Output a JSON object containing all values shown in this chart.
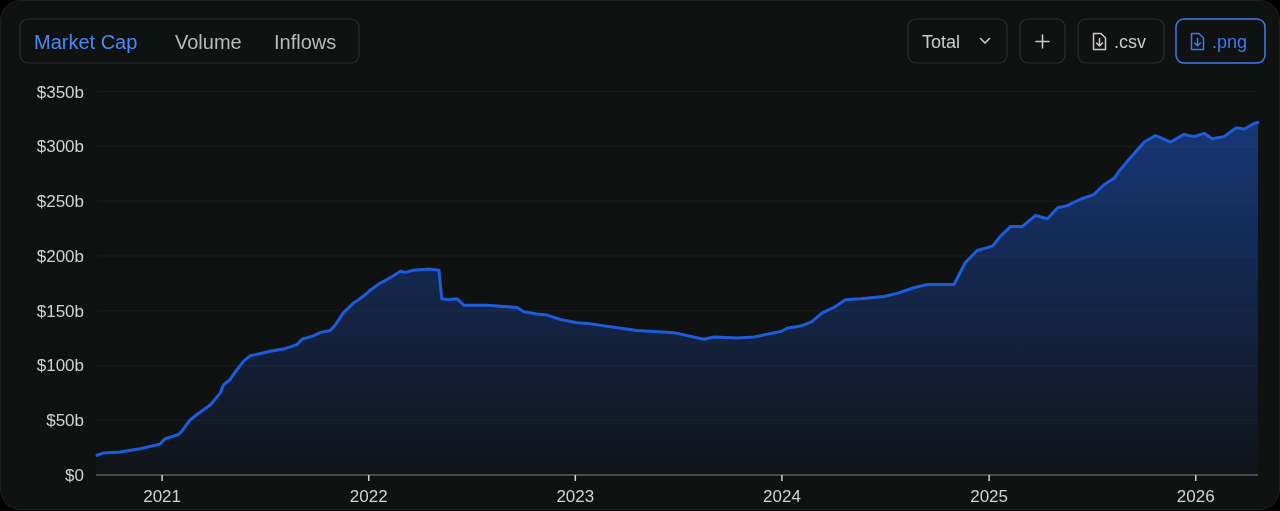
{
  "chart_data": {
    "type": "area",
    "title": "Market Cap",
    "annotations": [
      "Volume",
      "Inflows",
      "Total",
      ".csv",
      ".png"
    ],
    "x": [
      "2020-09-08",
      "2020-09-19",
      "2020-10-19",
      "2020-11-23",
      "2020-12-28",
      "2021-01-06",
      "2021-01-30",
      "2021-02-05",
      "2021-02-19",
      "2021-03-03",
      "2021-03-27",
      "2021-04-14",
      "2021-04-19",
      "2021-05-01",
      "2021-05-10",
      "2021-05-25",
      "2021-06-06",
      "2021-06-17",
      "2021-07-11",
      "2021-08-03",
      "2021-08-27",
      "2021-09-05",
      "2021-09-25",
      "2021-10-07",
      "2021-10-25",
      "2021-11-03",
      "2021-11-17",
      "2021-12-05",
      "2021-12-14",
      "2021-12-29",
      "2022-01-04",
      "2022-01-21",
      "2022-02-11",
      "2022-02-26",
      "2022-03-07",
      "2022-03-21",
      "2022-04-20",
      "2022-05-05",
      "2022-05-10",
      "2022-05-22",
      "2022-06-06",
      "2022-06-18",
      "2022-07-29",
      "2022-09-20",
      "2022-10-02",
      "2022-10-25",
      "2022-11-12",
      "2022-12-06",
      "2023-01-04",
      "2023-01-28",
      "2023-03-10",
      "2023-04-20",
      "2023-06-24",
      "2023-08-16",
      "2023-09-03",
      "2023-10-14",
      "2023-11-12",
      "2023-12-30",
      "2024-01-10",
      "2024-02-03",
      "2024-02-23",
      "2024-03-12",
      "2024-04-02",
      "2024-04-22",
      "2024-05-19",
      "2024-06-29",
      "2024-07-23",
      "2024-08-21",
      "2024-09-14",
      "2024-10-31",
      "2024-11-20",
      "2024-12-11",
      "2025-01-07",
      "2025-01-21",
      "2025-02-08",
      "2025-03-01",
      "2025-03-24",
      "2025-04-14",
      "2025-05-02",
      "2025-05-19",
      "2025-06-12",
      "2025-07-05",
      "2025-07-23",
      "2025-08-10",
      "2025-08-21",
      "2025-09-05",
      "2025-10-02",
      "2025-10-22",
      "2025-11-18",
      "2025-12-11",
      "2025-12-29",
      "2026-01-16",
      "2026-01-30",
      "2026-02-20",
      "2026-03-13",
      "2026-03-28",
      "2026-04-14",
      "2026-04-21"
    ],
    "values": [
      18,
      20,
      21,
      24,
      28,
      33,
      37,
      40,
      50,
      55,
      64,
      75,
      82,
      87,
      94,
      104,
      109,
      110,
      113,
      115,
      119,
      124,
      127,
      130,
      132,
      137,
      148,
      157,
      160,
      166,
      169,
      175,
      181,
      186,
      185,
      187,
      188,
      187,
      161,
      160,
      161,
      155,
      155,
      153,
      149,
      147,
      146,
      142,
      139,
      138,
      135,
      132,
      130,
      124,
      126,
      125,
      126,
      131,
      134,
      136,
      140,
      148,
      153,
      160,
      161,
      163,
      166,
      171,
      174,
      174,
      194,
      205,
      209,
      218,
      227,
      227,
      237,
      234,
      244,
      246,
      252,
      256,
      265,
      271,
      279,
      288,
      304,
      310,
      304,
      311,
      309,
      312,
      307,
      309,
      317,
      316,
      321,
      322
    ],
    "color": "#1d5ddc",
    "xlim": [
      "2020-09-08",
      "2026-04-21"
    ],
    "xticks": [
      {
        "value": "2021-01-01",
        "label": "2021"
      },
      {
        "value": "2022-01-01",
        "label": "2022"
      },
      {
        "value": "2023-01-01",
        "label": "2023"
      },
      {
        "value": "2024-01-01",
        "label": "2024"
      },
      {
        "value": "2025-01-01",
        "label": "2025"
      },
      {
        "value": "2026-01-01",
        "label": "2026"
      }
    ],
    "ylim": [
      0,
      350
    ],
    "yticks": [
      {
        "value": 0,
        "label": "$0"
      },
      {
        "value": 50,
        "label": "$50b"
      },
      {
        "value": 100,
        "label": "$100b"
      },
      {
        "value": 150,
        "label": "$150b"
      },
      {
        "value": 200,
        "label": "$200b"
      },
      {
        "value": 250,
        "label": "$250b"
      },
      {
        "value": 300,
        "label": "$300b"
      },
      {
        "value": 350,
        "label": "$350b"
      }
    ],
    "grid": "y"
  }
}
